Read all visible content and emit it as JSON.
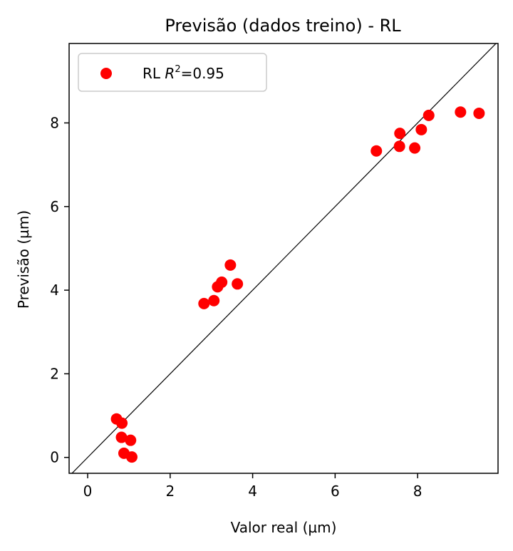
{
  "chart_data": {
    "type": "scatter",
    "title": "Previsão (dados treino) - RL",
    "xlabel": "Valor real (µm)",
    "ylabel": "Previsão (µm)",
    "xlim": [
      -0.45,
      9.95
    ],
    "ylim": [
      -0.38,
      9.9
    ],
    "xticks": [
      0,
      2,
      4,
      6,
      8
    ],
    "yticks": [
      0,
      2,
      4,
      6,
      8
    ],
    "grid": false,
    "legend_placement": "top-left",
    "reference_line": "y = x",
    "series": [
      {
        "name": "RL R2=0.95",
        "legend": {
          "prefix": "RL ",
          "var": "R",
          "sup": "2",
          "suffix": "=0.95"
        },
        "color": "#ff0000",
        "points": [
          {
            "x": 0.7,
            "y": 0.92
          },
          {
            "x": 0.83,
            "y": 0.82
          },
          {
            "x": 0.82,
            "y": 0.48
          },
          {
            "x": 1.04,
            "y": 0.41
          },
          {
            "x": 0.88,
            "y": 0.1
          },
          {
            "x": 1.07,
            "y": 0.01
          },
          {
            "x": 2.82,
            "y": 3.68
          },
          {
            "x": 3.06,
            "y": 3.75
          },
          {
            "x": 3.15,
            "y": 4.08
          },
          {
            "x": 3.25,
            "y": 4.19
          },
          {
            "x": 3.46,
            "y": 4.6
          },
          {
            "x": 3.63,
            "y": 4.15
          },
          {
            "x": 7.0,
            "y": 7.33
          },
          {
            "x": 7.56,
            "y": 7.44
          },
          {
            "x": 7.57,
            "y": 7.75
          },
          {
            "x": 7.93,
            "y": 7.4
          },
          {
            "x": 8.09,
            "y": 7.84
          },
          {
            "x": 8.27,
            "y": 8.18
          },
          {
            "x": 9.04,
            "y": 8.26
          },
          {
            "x": 9.49,
            "y": 8.23
          }
        ]
      }
    ]
  }
}
